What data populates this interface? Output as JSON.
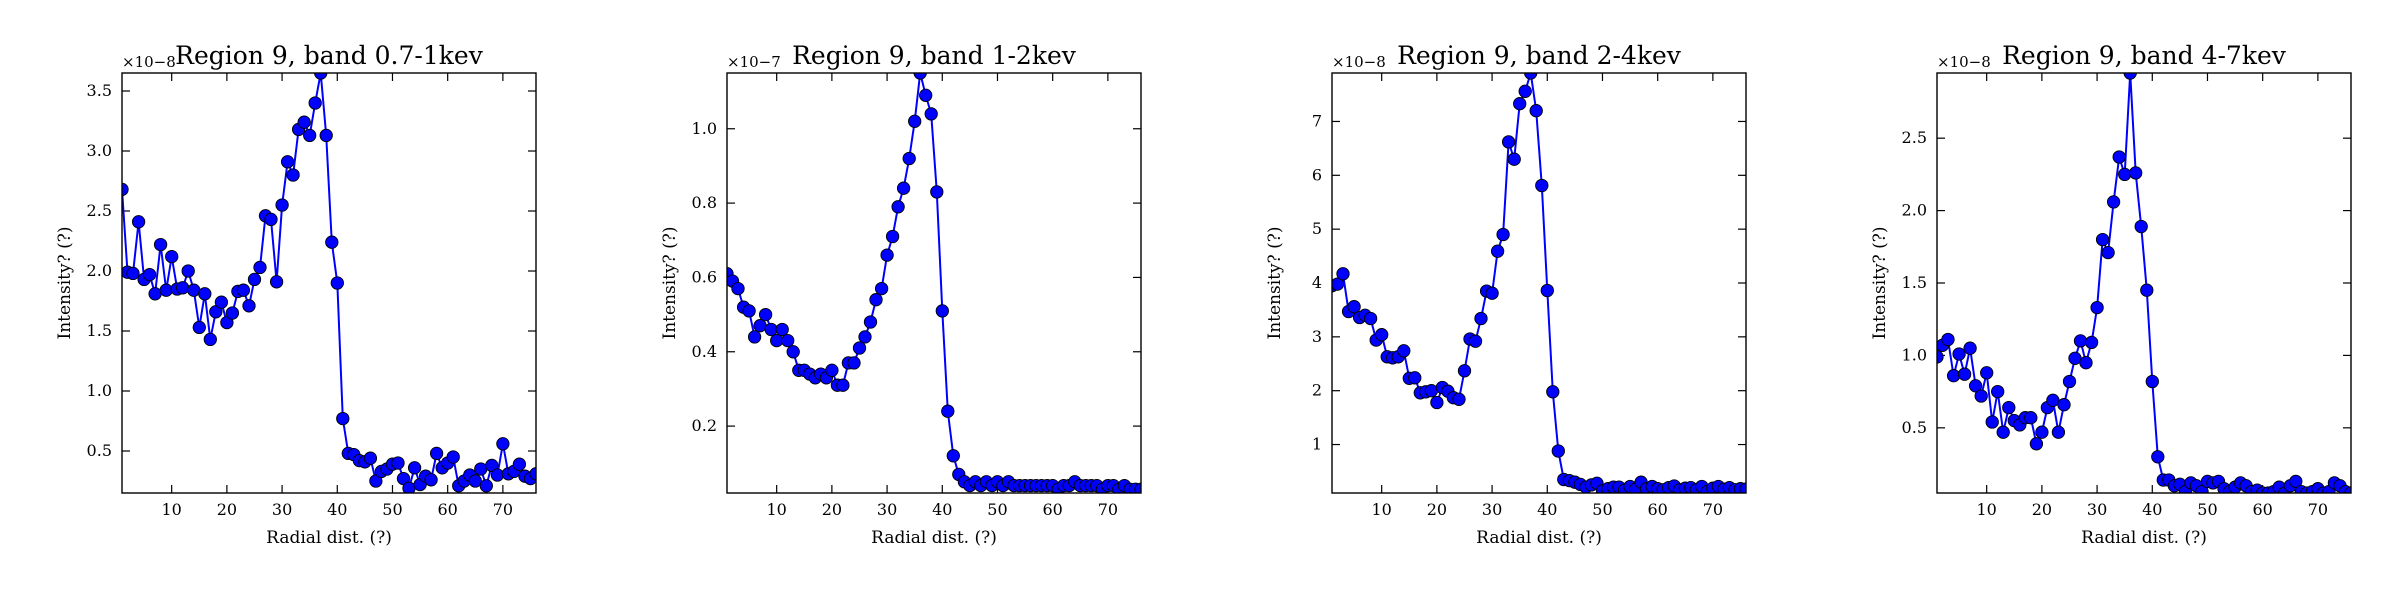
{
  "figure": {
    "series_color": "#0000ff",
    "marker_edge_color": "#000000"
  },
  "chart_data": [
    {
      "type": "line",
      "title": "Region 9, band 0.7-1kev",
      "xlabel": "Radial dist. (?)",
      "ylabel": "Intensity? (?)",
      "offset_label": "×10−8",
      "xlim": [
        1,
        76
      ],
      "ylim": [
        0.15,
        3.65
      ],
      "xticks": [
        10,
        20,
        30,
        40,
        50,
        60,
        70
      ],
      "yticks": [
        0.5,
        1.0,
        1.5,
        2.0,
        2.5,
        3.0,
        3.5
      ],
      "ytick_labels": [
        "0.5",
        "1.0",
        "1.5",
        "2.0",
        "2.5",
        "3.0",
        "3.5"
      ],
      "grid": false,
      "series": [
        {
          "x": [
            1,
            2,
            3,
            4,
            5,
            6,
            7,
            8,
            9,
            10,
            11,
            12,
            13,
            14,
            15,
            16,
            17,
            18,
            19,
            20,
            21,
            22,
            23,
            24,
            25,
            26,
            27,
            28,
            29,
            30,
            31,
            32,
            33,
            34,
            35,
            36,
            37,
            38,
            39,
            40,
            41,
            42,
            43,
            44,
            45,
            46,
            47,
            48,
            49,
            50,
            51,
            52,
            53,
            54,
            55,
            56,
            57,
            58,
            59,
            60,
            61,
            62,
            63,
            64,
            65,
            66,
            67,
            68,
            69,
            70,
            71,
            72,
            73,
            74,
            75,
            76
          ],
          "y": [
            2.68,
            1.99,
            1.98,
            2.41,
            1.93,
            1.97,
            1.81,
            2.22,
            1.84,
            2.12,
            1.85,
            1.86,
            2.0,
            1.84,
            1.53,
            1.81,
            1.43,
            1.66,
            1.74,
            1.57,
            1.65,
            1.83,
            1.84,
            1.71,
            1.93,
            2.03,
            2.46,
            2.43,
            1.91,
            2.55,
            2.91,
            2.8,
            3.18,
            3.24,
            3.13,
            3.4,
            3.65,
            3.13,
            2.24,
            1.9,
            0.77,
            0.48,
            0.47,
            0.42,
            0.41,
            0.44,
            0.25,
            0.33,
            0.35,
            0.39,
            0.4,
            0.27,
            0.19,
            0.36,
            0.22,
            0.29,
            0.26,
            0.48,
            0.36,
            0.4,
            0.45,
            0.21,
            0.25,
            0.3,
            0.25,
            0.35,
            0.21,
            0.38,
            0.3,
            0.56,
            0.31,
            0.33,
            0.39,
            0.29,
            0.27,
            0.31
          ]
        }
      ]
    },
    {
      "type": "line",
      "title": "Region 9, band 1-2kev",
      "xlabel": "Radial dist. (?)",
      "ylabel": "Intensity? (?)",
      "offset_label": "×10−7",
      "xlim": [
        1,
        76
      ],
      "ylim": [
        0.02,
        1.15
      ],
      "xticks": [
        10,
        20,
        30,
        40,
        50,
        60,
        70
      ],
      "yticks": [
        0.2,
        0.4,
        0.6,
        0.8,
        1.0
      ],
      "ytick_labels": [
        "0.2",
        "0.4",
        "0.6",
        "0.8",
        "1.0"
      ],
      "grid": false,
      "series": [
        {
          "x": [
            1,
            2,
            3,
            4,
            5,
            6,
            7,
            8,
            9,
            10,
            11,
            12,
            13,
            14,
            15,
            16,
            17,
            18,
            19,
            20,
            21,
            22,
            23,
            24,
            25,
            26,
            27,
            28,
            29,
            30,
            31,
            32,
            33,
            34,
            35,
            36,
            37,
            38,
            39,
            40,
            41,
            42,
            43,
            44,
            45,
            46,
            47,
            48,
            49,
            50,
            51,
            52,
            53,
            54,
            55,
            56,
            57,
            58,
            59,
            60,
            61,
            62,
            63,
            64,
            65,
            66,
            67,
            68,
            69,
            70,
            71,
            72,
            73,
            74,
            75,
            76
          ],
          "y": [
            0.61,
            0.59,
            0.57,
            0.52,
            0.51,
            0.44,
            0.47,
            0.5,
            0.46,
            0.43,
            0.46,
            0.43,
            0.4,
            0.35,
            0.35,
            0.34,
            0.33,
            0.34,
            0.33,
            0.35,
            0.31,
            0.31,
            0.37,
            0.37,
            0.41,
            0.44,
            0.48,
            0.54,
            0.57,
            0.66,
            0.71,
            0.79,
            0.84,
            0.92,
            1.02,
            1.15,
            1.09,
            1.04,
            0.83,
            0.51,
            0.24,
            0.12,
            0.07,
            0.05,
            0.04,
            0.05,
            0.04,
            0.05,
            0.04,
            0.05,
            0.04,
            0.05,
            0.04,
            0.04,
            0.04,
            0.04,
            0.04,
            0.04,
            0.04,
            0.04,
            0.03,
            0.04,
            0.04,
            0.05,
            0.04,
            0.04,
            0.04,
            0.04,
            0.03,
            0.04,
            0.04,
            0.03,
            0.04,
            0.03,
            0.03,
            0.03
          ]
        }
      ]
    },
    {
      "type": "line",
      "title": "Region 9, band 2-4kev",
      "xlabel": "Radial dist. (?)",
      "ylabel": "Intensity? (?)",
      "offset_label": "×10−8",
      "xlim": [
        1,
        76
      ],
      "ylim": [
        0.1,
        7.9
      ],
      "xticks": [
        10,
        20,
        30,
        40,
        50,
        60,
        70
      ],
      "yticks": [
        1,
        2,
        3,
        4,
        5,
        6,
        7
      ],
      "ytick_labels": [
        "1",
        "2",
        "3",
        "4",
        "5",
        "6",
        "7"
      ],
      "grid": false,
      "series": [
        {
          "x": [
            1,
            2,
            3,
            4,
            5,
            6,
            7,
            8,
            9,
            10,
            11,
            12,
            13,
            14,
            15,
            16,
            17,
            18,
            19,
            20,
            21,
            22,
            23,
            24,
            25,
            26,
            27,
            28,
            29,
            30,
            31,
            32,
            33,
            34,
            35,
            36,
            37,
            38,
            39,
            40,
            41,
            42,
            43,
            44,
            45,
            46,
            47,
            48,
            49,
            50,
            51,
            52,
            53,
            54,
            55,
            56,
            57,
            58,
            59,
            60,
            61,
            62,
            63,
            64,
            65,
            66,
            67,
            68,
            69,
            70,
            71,
            72,
            73,
            74,
            75,
            76
          ],
          "y": [
            3.95,
            3.98,
            4.17,
            3.47,
            3.56,
            3.36,
            3.4,
            3.34,
            2.94,
            3.04,
            2.63,
            2.61,
            2.63,
            2.74,
            2.23,
            2.24,
            1.96,
            1.98,
            2.0,
            1.78,
            2.06,
            1.99,
            1.87,
            1.84,
            2.37,
            2.96,
            2.92,
            3.34,
            3.85,
            3.81,
            4.59,
            4.9,
            6.62,
            6.3,
            7.33,
            7.56,
            7.9,
            7.2,
            5.81,
            3.86,
            1.98,
            0.88,
            0.35,
            0.33,
            0.3,
            0.26,
            0.21,
            0.25,
            0.28,
            0.14,
            0.18,
            0.21,
            0.21,
            0.15,
            0.22,
            0.17,
            0.3,
            0.18,
            0.22,
            0.18,
            0.16,
            0.2,
            0.23,
            0.16,
            0.19,
            0.2,
            0.16,
            0.22,
            0.13,
            0.19,
            0.22,
            0.17,
            0.2,
            0.16,
            0.18,
            0.17
          ]
        }
      ]
    },
    {
      "type": "line",
      "title": "Region 9, band 4-7kev",
      "xlabel": "Radial dist. (?)",
      "ylabel": "Intensity? (?)",
      "offset_label": "×10−8",
      "xlim": [
        1,
        76
      ],
      "ylim": [
        0.05,
        2.95
      ],
      "xticks": [
        10,
        20,
        30,
        40,
        50,
        60,
        70
      ],
      "yticks": [
        0.5,
        1.0,
        1.5,
        2.0,
        2.5
      ],
      "ytick_labels": [
        "0.5",
        "1.0",
        "1.5",
        "2.0",
        "2.5"
      ],
      "grid": false,
      "series": [
        {
          "x": [
            1,
            2,
            3,
            4,
            5,
            6,
            7,
            8,
            9,
            10,
            11,
            12,
            13,
            14,
            15,
            16,
            17,
            18,
            19,
            20,
            21,
            22,
            23,
            24,
            25,
            26,
            27,
            28,
            29,
            30,
            31,
            32,
            33,
            34,
            35,
            36,
            37,
            38,
            39,
            40,
            41,
            42,
            43,
            44,
            45,
            46,
            47,
            48,
            49,
            50,
            51,
            52,
            53,
            54,
            55,
            56,
            57,
            58,
            59,
            60,
            61,
            62,
            63,
            64,
            65,
            66,
            67,
            68,
            69,
            70,
            71,
            72,
            73,
            74,
            75,
            76
          ],
          "y": [
            0.99,
            1.07,
            1.11,
            0.86,
            1.01,
            0.87,
            1.05,
            0.79,
            0.72,
            0.88,
            0.54,
            0.75,
            0.47,
            0.64,
            0.55,
            0.52,
            0.57,
            0.57,
            0.39,
            0.47,
            0.64,
            0.69,
            0.47,
            0.66,
            0.82,
            0.98,
            1.1,
            0.95,
            1.09,
            1.33,
            1.8,
            1.71,
            2.06,
            2.37,
            2.25,
            2.95,
            2.26,
            1.89,
            1.45,
            0.82,
            0.3,
            0.14,
            0.14,
            0.1,
            0.11,
            0.06,
            0.12,
            0.1,
            0.06,
            0.13,
            0.12,
            0.13,
            0.08,
            0.06,
            0.09,
            0.12,
            0.1,
            0.06,
            0.07,
            0.05,
            0.05,
            0.06,
            0.09,
            0.05,
            0.1,
            0.13,
            0.06,
            0.05,
            0.06,
            0.08,
            0.05,
            0.06,
            0.12,
            0.1,
            0.06,
            0.05
          ]
        }
      ]
    }
  ]
}
